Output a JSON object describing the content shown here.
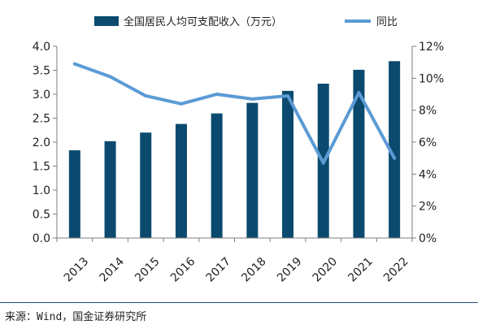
{
  "chart_data": {
    "type": "bar",
    "categories": [
      "2013",
      "2014",
      "2015",
      "2016",
      "2017",
      "2018",
      "2019",
      "2020",
      "2021",
      "2022"
    ],
    "series": [
      {
        "name": "全国居民人均可支配收入（万元）",
        "type": "bar",
        "axis": "left",
        "values": [
          1.83,
          2.02,
          2.2,
          2.38,
          2.6,
          2.82,
          3.07,
          3.22,
          3.51,
          3.69
        ]
      },
      {
        "name": "同比",
        "type": "line",
        "axis": "right",
        "values": [
          10.9,
          10.1,
          8.9,
          8.4,
          9.0,
          8.7,
          8.9,
          4.7,
          9.1,
          5.0
        ]
      }
    ],
    "ylim": [
      0,
      4.0
    ],
    "yticks": [
      "0.0",
      "0.5",
      "1.0",
      "1.5",
      "2.0",
      "2.5",
      "3.0",
      "3.5",
      "4.0"
    ],
    "ylim_right": [
      0,
      12
    ],
    "yticks_right": [
      "0%",
      "2%",
      "4%",
      "6%",
      "8%",
      "10%",
      "12%"
    ],
    "xlabel": "",
    "ylabel": "",
    "ylabel_right": "",
    "legend_position": "top",
    "grid": false,
    "colors": {
      "bar": "#0b4a6e",
      "line": "#5b9bd5"
    }
  },
  "source": "来源：Wind，国金证券研究所"
}
